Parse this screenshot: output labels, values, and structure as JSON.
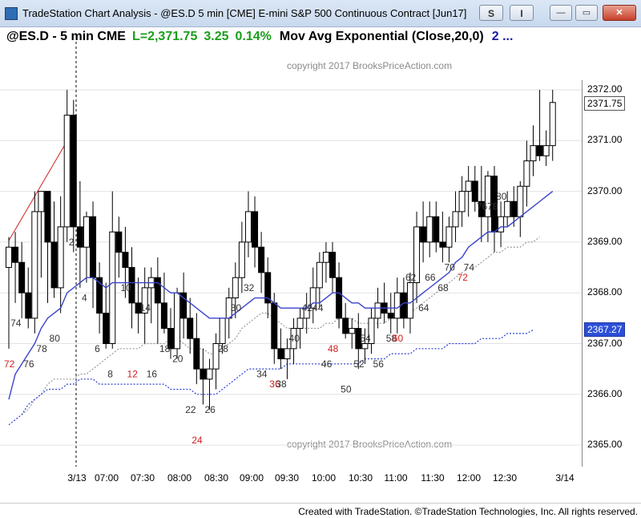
{
  "window": {
    "title": "TradeStation Chart Analysis - @ES.D 5 min [CME] E-mini S&P 500 Continuous Contract [Jun17]",
    "btn_s": "S",
    "btn_i": "I",
    "min_label": "—",
    "max_label": "▭",
    "close_label": "✕"
  },
  "header": {
    "symbol": "@ES.D - 5 min  CME",
    "last": "L=2,371.75",
    "change": "3.25",
    "percent": "0.14%",
    "study": "Mov Avg Exponential (Close,20,0)",
    "more": "2  ..."
  },
  "copyright_top": "copyright 2017 BrooksPriceAction.com",
  "copyright_bottom": "copyright 2017 BrooksPriceAction.com",
  "price_axis": {
    "ticks": [
      "2372.00",
      "2371.00",
      "2370.00",
      "2369.00",
      "2368.00",
      "2367.00",
      "2366.00",
      "2365.00"
    ],
    "last_price": "2371.75",
    "ema_price": "2367.27"
  },
  "time_axis": [
    "3/13",
    "07:00",
    "07:30",
    "08:00",
    "08:30",
    "09:00",
    "09:30",
    "10:00",
    "10:30",
    "11:00",
    "11:30",
    "12:00",
    "12:30",
    "3/14"
  ],
  "footer": "Created with TradeStation. ©TradeStation Technologies, Inc. All rights reserved.",
  "colors": {
    "ema": "#3a44c8",
    "ema_dots": "#2c3fd8",
    "gray_dots": "#9a9a9a",
    "trendline": "#d02020",
    "bar_label": "#333333",
    "bar_label_red": "#d02020",
    "session_line": "#000000"
  },
  "chart_data": {
    "type": "candlestick",
    "ylim": [
      2364.6,
      2372.3
    ],
    "bars": [
      {
        "o": 2368.5,
        "h": 2369.1,
        "l": 2366.9,
        "c": 2368.9
      },
      {
        "o": 2368.9,
        "h": 2369.2,
        "l": 2367.8,
        "c": 2368.6
      },
      {
        "o": 2368.6,
        "h": 2369.0,
        "l": 2367.5,
        "c": 2368.0
      },
      {
        "o": 2368.0,
        "h": 2368.5,
        "l": 2367.3,
        "c": 2367.5
      },
      {
        "o": 2367.5,
        "h": 2370.0,
        "l": 2367.2,
        "c": 2369.6
      },
      {
        "o": 2369.6,
        "h": 2370.0,
        "l": 2368.3,
        "c": 2370.0
      },
      {
        "o": 2370.0,
        "h": 2370.0,
        "l": 2367.8,
        "c": 2369.0
      },
      {
        "o": 2369.0,
        "h": 2369.8,
        "l": 2367.9,
        "c": 2368.1
      },
      {
        "o": 2368.1,
        "h": 2369.9,
        "l": 2367.6,
        "c": 2369.3
      },
      {
        "o": 2369.3,
        "h": 2372.0,
        "l": 2369.0,
        "c": 2371.5
      },
      {
        "o": 2371.5,
        "h": 2371.8,
        "l": 2368.8,
        "c": 2369.3
      },
      {
        "o": 2369.3,
        "h": 2370.2,
        "l": 2368.1,
        "c": 2368.9
      },
      {
        "o": 2368.9,
        "h": 2369.6,
        "l": 2368.2,
        "c": 2369.5
      },
      {
        "o": 2369.5,
        "h": 2369.8,
        "l": 2367.7,
        "c": 2368.3
      },
      {
        "o": 2368.3,
        "h": 2368.6,
        "l": 2367.2,
        "c": 2367.6
      },
      {
        "o": 2367.6,
        "h": 2368.2,
        "l": 2366.9,
        "c": 2367.0
      },
      {
        "o": 2367.0,
        "h": 2370.0,
        "l": 2366.9,
        "c": 2369.2
      },
      {
        "o": 2369.2,
        "h": 2369.5,
        "l": 2368.3,
        "c": 2368.8
      },
      {
        "o": 2368.8,
        "h": 2369.3,
        "l": 2367.9,
        "c": 2368.5
      },
      {
        "o": 2368.5,
        "h": 2368.9,
        "l": 2367.3,
        "c": 2367.8
      },
      {
        "o": 2367.8,
        "h": 2368.3,
        "l": 2367.2,
        "c": 2367.6
      },
      {
        "o": 2367.6,
        "h": 2368.5,
        "l": 2367.0,
        "c": 2368.1
      },
      {
        "o": 2368.1,
        "h": 2368.5,
        "l": 2367.4,
        "c": 2368.3
      },
      {
        "o": 2368.3,
        "h": 2368.7,
        "l": 2367.0,
        "c": 2367.8
      },
      {
        "o": 2367.8,
        "h": 2368.4,
        "l": 2367.2,
        "c": 2367.3
      },
      {
        "o": 2367.3,
        "h": 2367.7,
        "l": 2366.7,
        "c": 2366.9
      },
      {
        "o": 2366.9,
        "h": 2368.1,
        "l": 2366.7,
        "c": 2368.0
      },
      {
        "o": 2368.0,
        "h": 2368.4,
        "l": 2367.1,
        "c": 2367.5
      },
      {
        "o": 2367.5,
        "h": 2367.9,
        "l": 2366.8,
        "c": 2367.1
      },
      {
        "o": 2367.1,
        "h": 2367.6,
        "l": 2366.2,
        "c": 2366.5
      },
      {
        "o": 2366.5,
        "h": 2366.9,
        "l": 2365.8,
        "c": 2366.3
      },
      {
        "o": 2366.3,
        "h": 2366.7,
        "l": 2365.7,
        "c": 2366.5
      },
      {
        "o": 2366.5,
        "h": 2367.2,
        "l": 2366.1,
        "c": 2367.0
      },
      {
        "o": 2367.0,
        "h": 2367.5,
        "l": 2366.8,
        "c": 2367.5
      },
      {
        "o": 2367.5,
        "h": 2368.1,
        "l": 2367.1,
        "c": 2367.9
      },
      {
        "o": 2367.9,
        "h": 2368.6,
        "l": 2367.5,
        "c": 2368.3
      },
      {
        "o": 2368.3,
        "h": 2369.4,
        "l": 2368.0,
        "c": 2369.0
      },
      {
        "o": 2369.0,
        "h": 2370.0,
        "l": 2368.7,
        "c": 2369.6
      },
      {
        "o": 2369.6,
        "h": 2369.9,
        "l": 2368.5,
        "c": 2368.9
      },
      {
        "o": 2368.9,
        "h": 2369.2,
        "l": 2368.0,
        "c": 2368.4
      },
      {
        "o": 2368.4,
        "h": 2368.7,
        "l": 2367.5,
        "c": 2367.8
      },
      {
        "o": 2367.8,
        "h": 2368.0,
        "l": 2366.6,
        "c": 2366.9
      },
      {
        "o": 2366.9,
        "h": 2367.3,
        "l": 2366.5,
        "c": 2366.7
      },
      {
        "o": 2366.7,
        "h": 2367.1,
        "l": 2366.3,
        "c": 2366.9
      },
      {
        "o": 2366.9,
        "h": 2367.5,
        "l": 2366.6,
        "c": 2367.3
      },
      {
        "o": 2367.3,
        "h": 2367.7,
        "l": 2366.9,
        "c": 2367.5
      },
      {
        "o": 2367.5,
        "h": 2368.0,
        "l": 2367.2,
        "c": 2367.7
      },
      {
        "o": 2367.7,
        "h": 2368.5,
        "l": 2367.4,
        "c": 2368.1
      },
      {
        "o": 2368.1,
        "h": 2368.8,
        "l": 2367.7,
        "c": 2368.6
      },
      {
        "o": 2368.6,
        "h": 2369.0,
        "l": 2368.2,
        "c": 2368.8
      },
      {
        "o": 2368.8,
        "h": 2369.0,
        "l": 2368.0,
        "c": 2368.3
      },
      {
        "o": 2368.3,
        "h": 2368.6,
        "l": 2367.3,
        "c": 2367.5
      },
      {
        "o": 2367.5,
        "h": 2367.8,
        "l": 2367.1,
        "c": 2367.2
      },
      {
        "o": 2367.2,
        "h": 2367.5,
        "l": 2366.9,
        "c": 2367.3
      },
      {
        "o": 2367.3,
        "h": 2367.6,
        "l": 2366.5,
        "c": 2366.9
      },
      {
        "o": 2366.9,
        "h": 2367.3,
        "l": 2366.6,
        "c": 2367.0
      },
      {
        "o": 2367.0,
        "h": 2367.7,
        "l": 2366.8,
        "c": 2367.5
      },
      {
        "o": 2367.5,
        "h": 2368.1,
        "l": 2367.3,
        "c": 2367.8
      },
      {
        "o": 2367.8,
        "h": 2368.2,
        "l": 2367.4,
        "c": 2367.6
      },
      {
        "o": 2367.6,
        "h": 2368.0,
        "l": 2367.2,
        "c": 2367.5
      },
      {
        "o": 2367.5,
        "h": 2368.3,
        "l": 2367.2,
        "c": 2368.0
      },
      {
        "o": 2368.0,
        "h": 2368.3,
        "l": 2367.3,
        "c": 2367.5
      },
      {
        "o": 2367.5,
        "h": 2368.4,
        "l": 2367.2,
        "c": 2368.2
      },
      {
        "o": 2368.2,
        "h": 2369.6,
        "l": 2367.8,
        "c": 2369.3
      },
      {
        "o": 2369.3,
        "h": 2369.8,
        "l": 2368.6,
        "c": 2369.0
      },
      {
        "o": 2369.0,
        "h": 2369.8,
        "l": 2368.7,
        "c": 2369.5
      },
      {
        "o": 2369.5,
        "h": 2369.8,
        "l": 2368.8,
        "c": 2369.0
      },
      {
        "o": 2369.0,
        "h": 2369.6,
        "l": 2368.6,
        "c": 2368.9
      },
      {
        "o": 2368.9,
        "h": 2369.5,
        "l": 2368.6,
        "c": 2369.3
      },
      {
        "o": 2369.3,
        "h": 2370.0,
        "l": 2369.0,
        "c": 2369.6
      },
      {
        "o": 2369.6,
        "h": 2370.3,
        "l": 2369.3,
        "c": 2370.0
      },
      {
        "o": 2370.0,
        "h": 2370.5,
        "l": 2369.5,
        "c": 2370.2
      },
      {
        "o": 2370.2,
        "h": 2370.5,
        "l": 2369.6,
        "c": 2369.8
      },
      {
        "o": 2369.8,
        "h": 2370.5,
        "l": 2369.0,
        "c": 2369.5
      },
      {
        "o": 2369.5,
        "h": 2370.4,
        "l": 2369.0,
        "c": 2370.3
      },
      {
        "o": 2370.3,
        "h": 2370.5,
        "l": 2368.8,
        "c": 2369.2
      },
      {
        "o": 2369.2,
        "h": 2369.8,
        "l": 2368.9,
        "c": 2369.5
      },
      {
        "o": 2369.5,
        "h": 2370.0,
        "l": 2369.3,
        "c": 2369.8
      },
      {
        "o": 2369.8,
        "h": 2370.1,
        "l": 2369.3,
        "c": 2369.5
      },
      {
        "o": 2369.5,
        "h": 2370.2,
        "l": 2369.1,
        "c": 2370.1
      },
      {
        "o": 2370.1,
        "h": 2371.0,
        "l": 2369.7,
        "c": 2370.6
      },
      {
        "o": 2370.6,
        "h": 2371.3,
        "l": 2370.3,
        "c": 2370.9
      },
      {
        "o": 2370.9,
        "h": 2372.0,
        "l": 2370.6,
        "c": 2370.7
      },
      {
        "o": 2370.7,
        "h": 2371.2,
        "l": 2370.5,
        "c": 2370.9
      },
      {
        "o": 2370.9,
        "h": 2372.0,
        "l": 2370.6,
        "c": 2371.75
      }
    ],
    "ema": [
      2365.9,
      2366.4,
      2366.6,
      2366.8,
      2367.0,
      2367.3,
      2367.5,
      2367.6,
      2367.7,
      2368.0,
      2368.1,
      2368.2,
      2368.3,
      2368.3,
      2368.2,
      2368.1,
      2368.2,
      2368.2,
      2368.2,
      2368.2,
      2368.2,
      2368.2,
      2368.2,
      2368.2,
      2368.1,
      2368.0,
      2368.0,
      2367.9,
      2367.8,
      2367.7,
      2367.6,
      2367.5,
      2367.5,
      2367.5,
      2367.5,
      2367.6,
      2367.7,
      2367.8,
      2367.9,
      2367.9,
      2367.9,
      2367.8,
      2367.7,
      2367.7,
      2367.7,
      2367.7,
      2367.7,
      2367.8,
      2367.8,
      2367.9,
      2368.0,
      2368.0,
      2367.9,
      2367.8,
      2367.8,
      2367.7,
      2367.7,
      2367.7,
      2367.7,
      2367.7,
      2367.7,
      2367.8,
      2367.8,
      2367.9,
      2368.0,
      2368.1,
      2368.2,
      2368.3,
      2368.4,
      2368.6,
      2368.7,
      2368.9,
      2369.0,
      2369.1,
      2369.2,
      2369.2,
      2369.3,
      2369.3,
      2369.4,
      2369.5,
      2369.6,
      2369.7,
      2369.8,
      2369.9,
      2370.0
    ],
    "gray_dots": [
      2365.6,
      2365.7,
      2365.9,
      2366.0,
      2366.2,
      2366.3,
      2366.3,
      2366.3,
      2366.3,
      2366.4,
      2366.4,
      2366.5,
      2366.6,
      2366.7,
      2366.8,
      2366.9,
      2366.9,
      2366.9,
      2366.9,
      2367.0,
      2367.0,
      2367.0,
      2367.0,
      2367.1,
      2367.1,
      2367.0,
      2366.9,
      2366.9,
      2366.9,
      2366.8,
      2366.8,
      2366.9,
      2367.0,
      2367.1,
      2367.3,
      2367.4,
      2367.5,
      2367.6,
      2367.6,
      2367.5,
      2367.4,
      2367.3,
      2367.3,
      2367.3,
      2367.3,
      2367.3,
      2367.3,
      2367.4,
      2367.4,
      2367.5,
      2367.5,
      2367.5,
      2367.4,
      2367.4,
      2367.4,
      2367.4,
      2367.4,
      2367.5,
      2367.5,
      2367.5,
      2367.6,
      2367.7,
      2367.8,
      2367.9,
      2368.0,
      2368.1,
      2368.2,
      2368.3,
      2368.4,
      2368.5,
      2368.5,
      2368.6,
      2368.7,
      2368.8,
      2368.8,
      2368.9,
      2368.9,
      2368.9,
      2369.0,
      2369.0,
      2369.1
    ],
    "blue_dots": [
      2365.4,
      2365.5,
      2365.6,
      2365.8,
      2365.9,
      2366.0,
      2366.1,
      2366.1,
      2366.1,
      2366.2,
      2366.2,
      2366.3,
      2366.3,
      2366.3,
      2366.2,
      2366.2,
      2366.2,
      2366.2,
      2366.2,
      2366.2,
      2366.2,
      2366.2,
      2366.2,
      2366.2,
      2366.2,
      2366.1,
      2366.1,
      2366.1,
      2366.1,
      2366.0,
      2366.0,
      2366.0,
      2366.0,
      2366.1,
      2366.2,
      2366.3,
      2366.4,
      2366.5,
      2366.5,
      2366.5,
      2366.5,
      2366.5,
      2366.5,
      2366.6,
      2366.6,
      2366.6,
      2366.6,
      2366.6,
      2366.6,
      2366.6,
      2366.6,
      2366.6,
      2366.6,
      2366.6,
      2366.6,
      2366.7,
      2366.7,
      2366.7,
      2366.7,
      2366.8,
      2366.8,
      2366.8,
      2366.8,
      2366.9,
      2366.9,
      2366.9,
      2366.9,
      2366.9,
      2367.0,
      2367.0,
      2367.0,
      2367.0,
      2367.0,
      2367.1,
      2367.1,
      2367.1,
      2367.1,
      2367.2,
      2367.2,
      2367.2,
      2367.2,
      2367.27
    ],
    "bar_labels": [
      {
        "text": "74",
        "bar": 1,
        "price": 2367.4,
        "color": "#333333"
      },
      {
        "text": "72",
        "bar": 0,
        "price": 2366.6,
        "color": "#d02020"
      },
      {
        "text": "76",
        "bar": 3,
        "price": 2366.6,
        "color": "#333333"
      },
      {
        "text": "78",
        "bar": 5,
        "price": 2366.9,
        "color": "#333333"
      },
      {
        "text": "80",
        "bar": 7,
        "price": 2367.1,
        "color": "#333333"
      },
      {
        "text": "2",
        "bar": 10,
        "price": 2369.0,
        "color": "#333333"
      },
      {
        "text": "4",
        "bar": 12,
        "price": 2367.9,
        "color": "#333333"
      },
      {
        "text": "6",
        "bar": 14,
        "price": 2366.9,
        "color": "#333333"
      },
      {
        "text": "8",
        "bar": 16,
        "price": 2366.4,
        "color": "#333333"
      },
      {
        "text": "10",
        "bar": 18,
        "price": 2368.1,
        "color": "#333333"
      },
      {
        "text": "12",
        "bar": 19,
        "price": 2366.4,
        "color": "#d02020"
      },
      {
        "text": "14",
        "bar": 21,
        "price": 2367.7,
        "color": "#333333"
      },
      {
        "text": "16",
        "bar": 22,
        "price": 2366.4,
        "color": "#333333"
      },
      {
        "text": "18",
        "bar": 24,
        "price": 2366.9,
        "color": "#333333"
      },
      {
        "text": "20",
        "bar": 26,
        "price": 2366.7,
        "color": "#333333"
      },
      {
        "text": "22",
        "bar": 28,
        "price": 2365.7,
        "color": "#333333"
      },
      {
        "text": "24",
        "bar": 29,
        "price": 2365.1,
        "color": "#d02020"
      },
      {
        "text": "26",
        "bar": 31,
        "price": 2365.7,
        "color": "#333333"
      },
      {
        "text": "28",
        "bar": 33,
        "price": 2366.9,
        "color": "#333333"
      },
      {
        "text": "30",
        "bar": 35,
        "price": 2367.7,
        "color": "#333333"
      },
      {
        "text": "32",
        "bar": 37,
        "price": 2368.1,
        "color": "#333333"
      },
      {
        "text": "34",
        "bar": 39,
        "price": 2366.4,
        "color": "#333333"
      },
      {
        "text": "36",
        "bar": 41,
        "price": 2366.2,
        "color": "#d02020"
      },
      {
        "text": "38",
        "bar": 42,
        "price": 2366.2,
        "color": "#333333"
      },
      {
        "text": "40",
        "bar": 44,
        "price": 2367.1,
        "color": "#333333"
      },
      {
        "text": "4244",
        "bar": 46,
        "price": 2367.7,
        "color": "#333333"
      },
      {
        "text": "46",
        "bar": 49,
        "price": 2366.6,
        "color": "#333333"
      },
      {
        "text": "48",
        "bar": 50,
        "price": 2366.9,
        "color": "#d02020"
      },
      {
        "text": "50",
        "bar": 52,
        "price": 2366.1,
        "color": "#333333"
      },
      {
        "text": "52",
        "bar": 54,
        "price": 2366.6,
        "color": "#333333"
      },
      {
        "text": "54",
        "bar": 55,
        "price": 2367.1,
        "color": "#333333"
      },
      {
        "text": "56",
        "bar": 57,
        "price": 2366.6,
        "color": "#333333"
      },
      {
        "text": "58",
        "bar": 59,
        "price": 2367.1,
        "color": "#333333"
      },
      {
        "text": "60",
        "bar": 60,
        "price": 2367.1,
        "color": "#d02020"
      },
      {
        "text": "62",
        "bar": 62,
        "price": 2368.3,
        "color": "#333333"
      },
      {
        "text": "64",
        "bar": 64,
        "price": 2367.7,
        "color": "#333333"
      },
      {
        "text": "66",
        "bar": 65,
        "price": 2368.3,
        "color": "#333333"
      },
      {
        "text": "68",
        "bar": 67,
        "price": 2368.1,
        "color": "#333333"
      },
      {
        "text": "70",
        "bar": 68,
        "price": 2368.5,
        "color": "#333333"
      },
      {
        "text": "72",
        "bar": 70,
        "price": 2368.3,
        "color": "#d02020"
      },
      {
        "text": "74",
        "bar": 71,
        "price": 2368.5,
        "color": "#333333"
      },
      {
        "text": "7678",
        "bar": 73,
        "price": 2369.7,
        "color": "#333333"
      },
      {
        "text": "80",
        "bar": 76,
        "price": 2369.9,
        "color": "#333333"
      }
    ]
  }
}
